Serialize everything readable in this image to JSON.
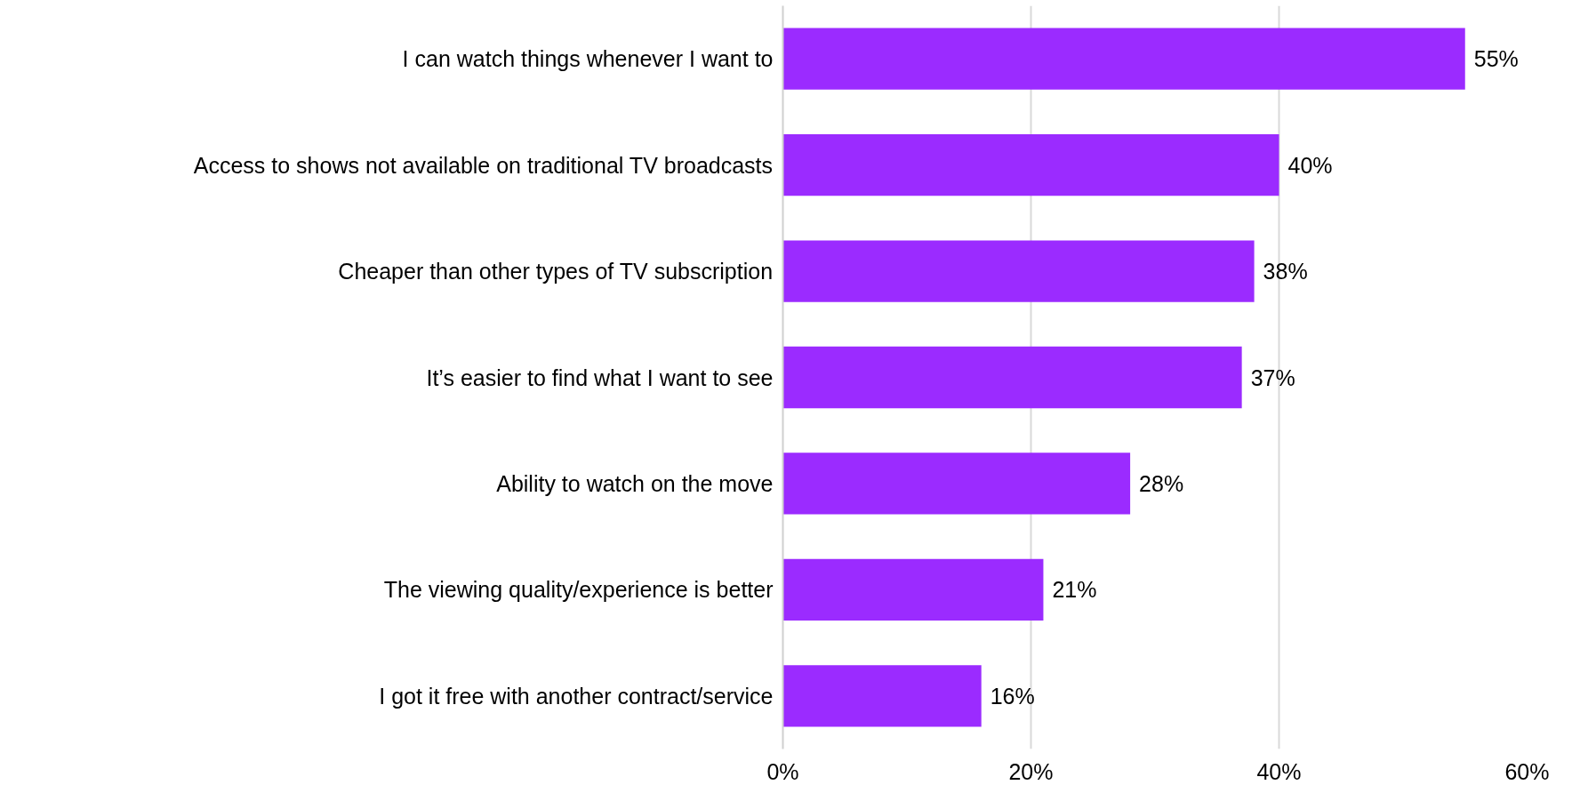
{
  "chart_data": {
    "type": "bar",
    "orientation": "horizontal",
    "categories": [
      "I can watch things whenever I want to",
      "Access to shows not available on traditional TV broadcasts",
      "Cheaper than other types of TV subscription",
      "It’s easier to find what I want to see",
      "Ability to watch on the move",
      "The viewing quality/experience is better",
      "I got it free with another contract/service"
    ],
    "values": [
      55,
      40,
      38,
      37,
      28,
      21,
      16
    ],
    "value_labels": [
      "55%",
      "40%",
      "38%",
      "37%",
      "28%",
      "21%",
      "16%"
    ],
    "color": "#9b2bff",
    "xlim": [
      0,
      60
    ],
    "xticks": [
      {
        "value": 0,
        "label": "0%"
      },
      {
        "value": 20,
        "label": "20%"
      },
      {
        "value": 40,
        "label": "40%"
      },
      {
        "value": 60,
        "label": "60%"
      }
    ],
    "grid": "x"
  }
}
